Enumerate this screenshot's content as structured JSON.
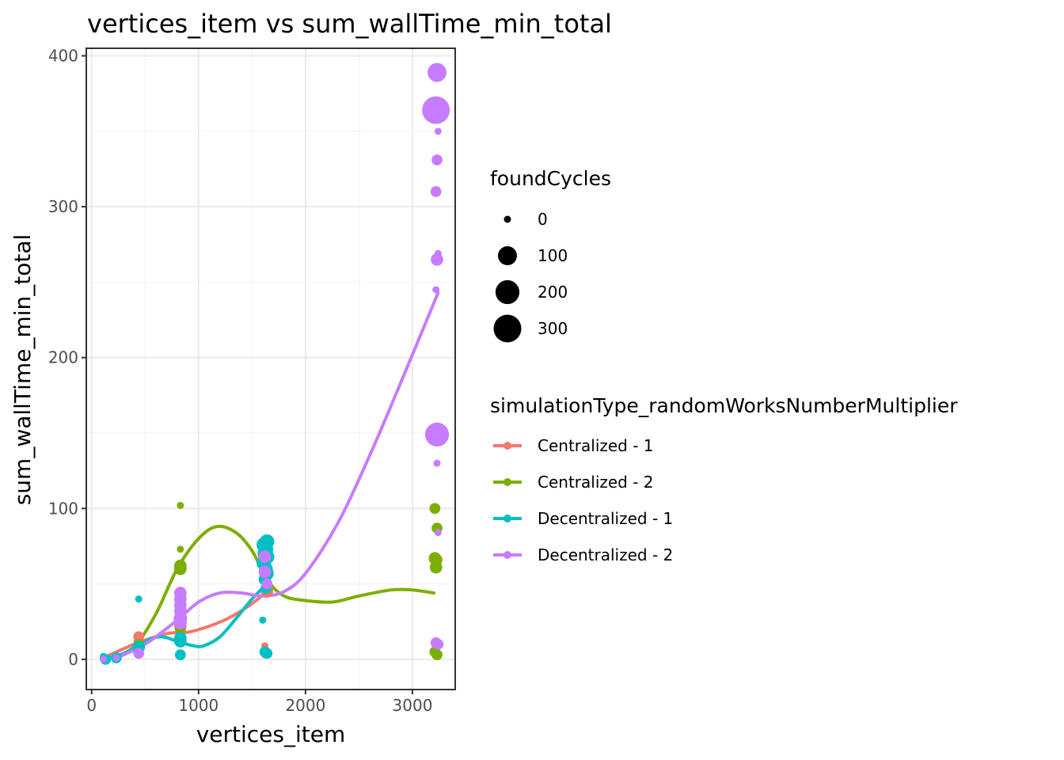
{
  "chart_data": {
    "type": "scatter",
    "title": "vertices_item  vs  sum_wallTime_min_total",
    "xlabel": "vertices_item",
    "ylabel": "sum_wallTime_min_total",
    "xlim": [
      -50,
      3400
    ],
    "ylim": [
      -20,
      405
    ],
    "xticks": [
      0,
      1000,
      2000,
      3000
    ],
    "yticks": [
      0,
      100,
      200,
      300,
      400
    ],
    "xtick_labels": [
      "0",
      "1000",
      "2000",
      "3000"
    ],
    "ytick_labels": [
      "0",
      "100",
      "200",
      "300",
      "400"
    ],
    "grid": true,
    "size_legend": {
      "title": "foundCycles",
      "entries": [
        {
          "label": "0",
          "value": 0
        },
        {
          "label": "100",
          "value": 100
        },
        {
          "label": "200",
          "value": 200
        },
        {
          "label": "300",
          "value": 300
        }
      ]
    },
    "color_legend": {
      "title": "simulationType_randomWorksNumberMultiplier",
      "placement": "right"
    },
    "series": [
      {
        "name": "Centralized - 1",
        "color": "#F8766D",
        "points": [
          {
            "x": 110,
            "y": 1,
            "size": 0
          },
          {
            "x": 230,
            "y": 2,
            "size": 0
          },
          {
            "x": 440,
            "y": 15,
            "size": 10
          },
          {
            "x": 440,
            "y": 12,
            "size": 5
          },
          {
            "x": 830,
            "y": 22,
            "size": 20
          },
          {
            "x": 830,
            "y": 18,
            "size": 10
          },
          {
            "x": 1620,
            "y": 9,
            "size": 0
          },
          {
            "x": 1620,
            "y": 5,
            "size": 0
          },
          {
            "x": 1620,
            "y": 3,
            "size": 0
          },
          {
            "x": 1640,
            "y": 45,
            "size": 20
          }
        ],
        "smooth": [
          [
            110,
            1
          ],
          [
            400,
            10
          ],
          [
            700,
            17
          ],
          [
            900,
            18
          ],
          [
            1100,
            22
          ],
          [
            1300,
            28
          ],
          [
            1500,
            37
          ],
          [
            1640,
            45
          ]
        ]
      },
      {
        "name": "Centralized - 2",
        "color": "#7CAE00",
        "points": [
          {
            "x": 110,
            "y": 1,
            "size": 0
          },
          {
            "x": 230,
            "y": 2,
            "size": 0
          },
          {
            "x": 440,
            "y": 10,
            "size": 10
          },
          {
            "x": 830,
            "y": 102,
            "size": 0
          },
          {
            "x": 830,
            "y": 73,
            "size": 0
          },
          {
            "x": 830,
            "y": 62,
            "size": 20
          },
          {
            "x": 830,
            "y": 60,
            "size": 20
          },
          {
            "x": 830,
            "y": 20,
            "size": 10
          },
          {
            "x": 3210,
            "y": 100,
            "size": 10
          },
          {
            "x": 3230,
            "y": 87,
            "size": 10
          },
          {
            "x": 3210,
            "y": 67,
            "size": 20
          },
          {
            "x": 3230,
            "y": 66,
            "size": 10
          },
          {
            "x": 3220,
            "y": 61,
            "size": 20
          },
          {
            "x": 3210,
            "y": 5,
            "size": 10
          },
          {
            "x": 3230,
            "y": 3,
            "size": 10
          }
        ],
        "smooth": [
          [
            230,
            1
          ],
          [
            400,
            8
          ],
          [
            600,
            30
          ],
          [
            800,
            60
          ],
          [
            1000,
            80
          ],
          [
            1170,
            88
          ],
          [
            1350,
            84
          ],
          [
            1500,
            72
          ],
          [
            1650,
            52
          ],
          [
            1800,
            42
          ],
          [
            2000,
            39
          ],
          [
            2250,
            38
          ],
          [
            2500,
            42
          ],
          [
            2800,
            46
          ],
          [
            3000,
            46
          ],
          [
            3200,
            44
          ]
        ]
      },
      {
        "name": "Decentralized - 1",
        "color": "#00BFC4",
        "points": [
          {
            "x": 110,
            "y": 2,
            "size": 0
          },
          {
            "x": 130,
            "y": 0,
            "size": 10
          },
          {
            "x": 230,
            "y": 1,
            "size": 10
          },
          {
            "x": 440,
            "y": 40,
            "size": 0
          },
          {
            "x": 440,
            "y": 8,
            "size": 20
          },
          {
            "x": 830,
            "y": 14,
            "size": 20
          },
          {
            "x": 830,
            "y": 12,
            "size": 20
          },
          {
            "x": 830,
            "y": 3,
            "size": 10
          },
          {
            "x": 1610,
            "y": 76,
            "size": 40
          },
          {
            "x": 1630,
            "y": 73,
            "size": 40
          },
          {
            "x": 1640,
            "y": 78,
            "size": 40
          },
          {
            "x": 1620,
            "y": 70,
            "size": 40
          },
          {
            "x": 1640,
            "y": 68,
            "size": 40
          },
          {
            "x": 1610,
            "y": 64,
            "size": 40
          },
          {
            "x": 1630,
            "y": 60,
            "size": 30
          },
          {
            "x": 1640,
            "y": 57,
            "size": 30
          },
          {
            "x": 1620,
            "y": 53,
            "size": 20
          },
          {
            "x": 1630,
            "y": 47,
            "size": 10
          },
          {
            "x": 1600,
            "y": 26,
            "size": 0
          },
          {
            "x": 1620,
            "y": 5,
            "size": 10
          },
          {
            "x": 1640,
            "y": 4,
            "size": 10
          }
        ],
        "smooth": [
          [
            110,
            0
          ],
          [
            300,
            4
          ],
          [
            500,
            12
          ],
          [
            650,
            15
          ],
          [
            800,
            12
          ],
          [
            950,
            9
          ],
          [
            1050,
            9
          ],
          [
            1200,
            15
          ],
          [
            1350,
            27
          ],
          [
            1500,
            40
          ],
          [
            1640,
            50
          ]
        ]
      },
      {
        "name": "Decentralized - 2",
        "color": "#C77CFF",
        "points": [
          {
            "x": 110,
            "y": 0,
            "size": 0
          },
          {
            "x": 230,
            "y": 1,
            "size": 0
          },
          {
            "x": 440,
            "y": 4,
            "size": 10
          },
          {
            "x": 830,
            "y": 44,
            "size": 20
          },
          {
            "x": 830,
            "y": 40,
            "size": 20
          },
          {
            "x": 830,
            "y": 36,
            "size": 20
          },
          {
            "x": 830,
            "y": 32,
            "size": 20
          },
          {
            "x": 830,
            "y": 27,
            "size": 30
          },
          {
            "x": 830,
            "y": 24,
            "size": 20
          },
          {
            "x": 1620,
            "y": 68,
            "size": 20
          },
          {
            "x": 1620,
            "y": 58,
            "size": 20
          },
          {
            "x": 1640,
            "y": 50,
            "size": 10
          },
          {
            "x": 3230,
            "y": 389,
            "size": 100
          },
          {
            "x": 3220,
            "y": 364,
            "size": 300
          },
          {
            "x": 3240,
            "y": 350,
            "size": 0
          },
          {
            "x": 3230,
            "y": 331,
            "size": 10
          },
          {
            "x": 3220,
            "y": 310,
            "size": 10
          },
          {
            "x": 3240,
            "y": 269,
            "size": 0
          },
          {
            "x": 3230,
            "y": 265,
            "size": 20
          },
          {
            "x": 3220,
            "y": 245,
            "size": 0
          },
          {
            "x": 3230,
            "y": 149,
            "size": 200
          },
          {
            "x": 3230,
            "y": 130,
            "size": 0
          },
          {
            "x": 3240,
            "y": 84,
            "size": 0
          },
          {
            "x": 3220,
            "y": 11,
            "size": 10
          },
          {
            "x": 3240,
            "y": 10,
            "size": 10
          }
        ],
        "smooth": [
          [
            230,
            1
          ],
          [
            500,
            10
          ],
          [
            800,
            26
          ],
          [
            1000,
            38
          ],
          [
            1200,
            44
          ],
          [
            1400,
            44
          ],
          [
            1600,
            42
          ],
          [
            1800,
            45
          ],
          [
            2000,
            57
          ],
          [
            2300,
            90
          ],
          [
            2600,
            135
          ],
          [
            2900,
            185
          ],
          [
            3240,
            243
          ]
        ]
      }
    ]
  }
}
